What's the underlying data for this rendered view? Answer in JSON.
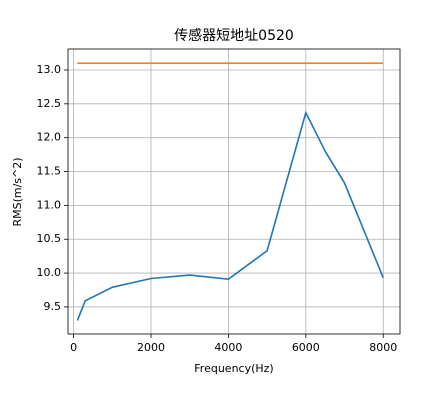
{
  "chart_data": {
    "type": "line",
    "title": "传感器短地址0520",
    "x_label": "Frequency(Hz)",
    "y_label": "RMS(m/s^2)",
    "series": [
      {
        "color": "#1f77b4",
        "x": [
          100,
          300,
          1000,
          2000,
          3000,
          4000,
          5000,
          6000,
          6500,
          7000,
          8000
        ],
        "values": [
          9.3,
          9.59,
          9.79,
          9.92,
          9.97,
          9.91,
          10.33,
          12.37,
          11.8,
          11.33,
          9.93
        ]
      },
      {
        "color": "#ff7f0e",
        "x": [
          100,
          8000
        ],
        "values": [
          13.1,
          13.1
        ]
      }
    ],
    "xlim": [
      -144,
      8433
    ],
    "ylim": [
      9.1,
      13.31
    ],
    "xticks": [
      0,
      2000,
      4000,
      6000,
      8000
    ],
    "yticks": [
      9.5,
      {
        "value": 10.0,
        "label": "10.0"
      },
      10.5,
      {
        "value": 11.0,
        "label": "11.0"
      },
      11.5,
      {
        "value": 12.0,
        "label": "12.0"
      },
      12.5,
      {
        "value": 13.0,
        "label": "13.0"
      }
    ],
    "grid": true
  }
}
